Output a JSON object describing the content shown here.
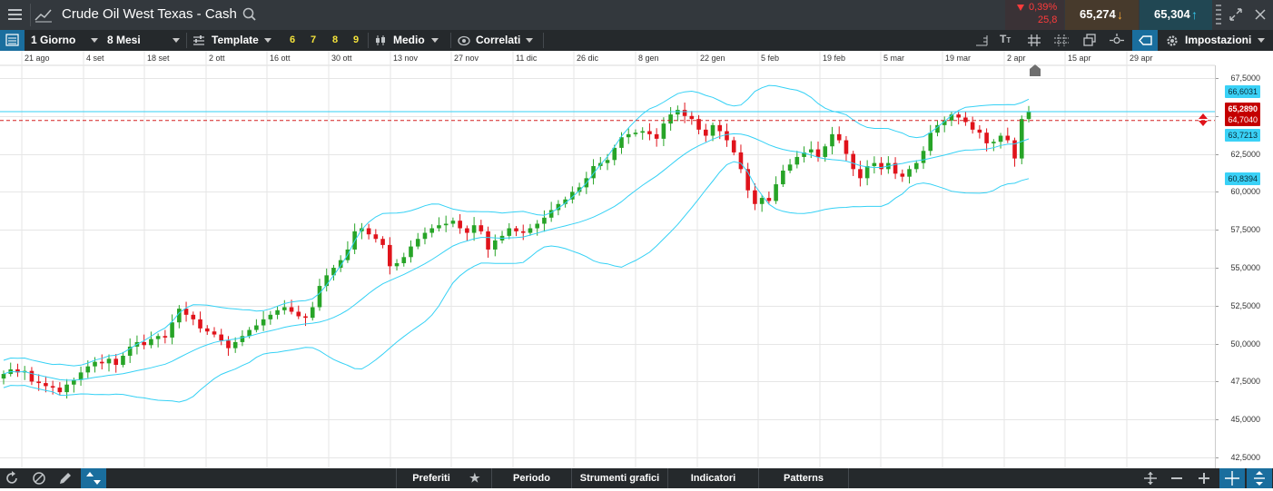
{
  "header": {
    "instrument": "Crude Oil West Texas - Cash",
    "change_percent": "0,39%",
    "change_points": "25,8",
    "sell_price": "65,274",
    "buy_price": "65,304"
  },
  "toolbar": {
    "timeframe": "1 Giorno",
    "period": "8 Mesi",
    "template": "Template",
    "presets": [
      "6",
      "7",
      "8",
      "9"
    ],
    "chart_style": "Medio",
    "correlated": "Correlati",
    "settings": "Impostazioni"
  },
  "bottom": {
    "favorites": "Preferiti",
    "period": "Periodo",
    "tools": "Strumenti grafici",
    "indicators": "Indicatori",
    "patterns": "Patterns"
  },
  "colors": {
    "up": "#27a427",
    "down": "#e0131b",
    "band": "#35d1f5",
    "price_badge": "#c40000",
    "label_badge": "#3ad1f6",
    "sell_bg": "#473a2c",
    "buy_bg": "#214753",
    "accent": "#1a6e9e"
  },
  "chart_data": {
    "type": "line",
    "x_ticks": [
      "21 ago",
      "4 set",
      "18 set",
      "2 ott",
      "16 ott",
      "30 ott",
      "13 nov",
      "27 nov",
      "11 dic",
      "26 dic",
      "8 gen",
      "22 gen",
      "5 feb",
      "19 feb",
      "5 mar",
      "19 mar",
      "2 apr",
      "15 apr",
      "29 apr"
    ],
    "y_ticks": [
      "67,5000",
      "65,0000",
      "62,5000",
      "60,0000",
      "57,5000",
      "55,0000",
      "52,5000",
      "50,0000",
      "47,5000",
      "45,0000",
      "42,5000"
    ],
    "ylim": [
      42.5,
      67.5
    ],
    "current_price": "65,2890",
    "band_labels": {
      "upper": "66,6031",
      "middle": "63,7213",
      "lower": "60,8394"
    },
    "reference_line_label": "64,7040",
    "series": [
      {
        "name": "",
        "type": "candlestick",
        "values": [
          48.0,
          48.3,
          48.1,
          48.2,
          47.5,
          47.4,
          47.2,
          47.1,
          46.8,
          47.3,
          47.6,
          48.1,
          48.5,
          48.8,
          48.7,
          49.0,
          48.6,
          49.2,
          49.8,
          50.1,
          49.9,
          50.3,
          50.5,
          50.4,
          51.4,
          52.3,
          51.9,
          51.6,
          51.0,
          50.8,
          50.6,
          50.2,
          49.7,
          50.1,
          50.5,
          50.9,
          51.2,
          51.6,
          51.9,
          52.2,
          52.4,
          52.1,
          51.8,
          51.7,
          52.4,
          53.8,
          54.5,
          55.0,
          55.5,
          56.2,
          57.4,
          57.6,
          57.2,
          56.9,
          56.5,
          55.1,
          55.3,
          55.7,
          56.4,
          56.9,
          57.3,
          57.6,
          57.8,
          57.9,
          58.1,
          57.6,
          57.3,
          57.8,
          57.4,
          56.2,
          56.8,
          57.1,
          57.6,
          57.4,
          57.3,
          57.6,
          57.9,
          58.3,
          58.8,
          59.2,
          59.5,
          60.0,
          60.3,
          60.9,
          61.7,
          61.9,
          62.1,
          62.9,
          63.6,
          63.8,
          63.9,
          64.0,
          63.8,
          63.5,
          64.5,
          65.1,
          65.4,
          65.0,
          64.8,
          64.1,
          63.7,
          64.4,
          64.0,
          63.4,
          62.6,
          61.5,
          60.1,
          59.2,
          59.6,
          59.4,
          60.5,
          61.4,
          61.8,
          62.3,
          62.6,
          62.8,
          62.3,
          63.0,
          63.8,
          63.4,
          62.5,
          61.5,
          60.9,
          61.7,
          61.9,
          61.5,
          61.9,
          61.2,
          61.0,
          61.5,
          61.9,
          62.7,
          63.9,
          64.4,
          64.7,
          65.1,
          64.9,
          64.6,
          64.1,
          63.9,
          63.2,
          63.3,
          63.7,
          63.4,
          62.2,
          64.8,
          65.3
        ]
      }
    ],
    "grid": true
  }
}
